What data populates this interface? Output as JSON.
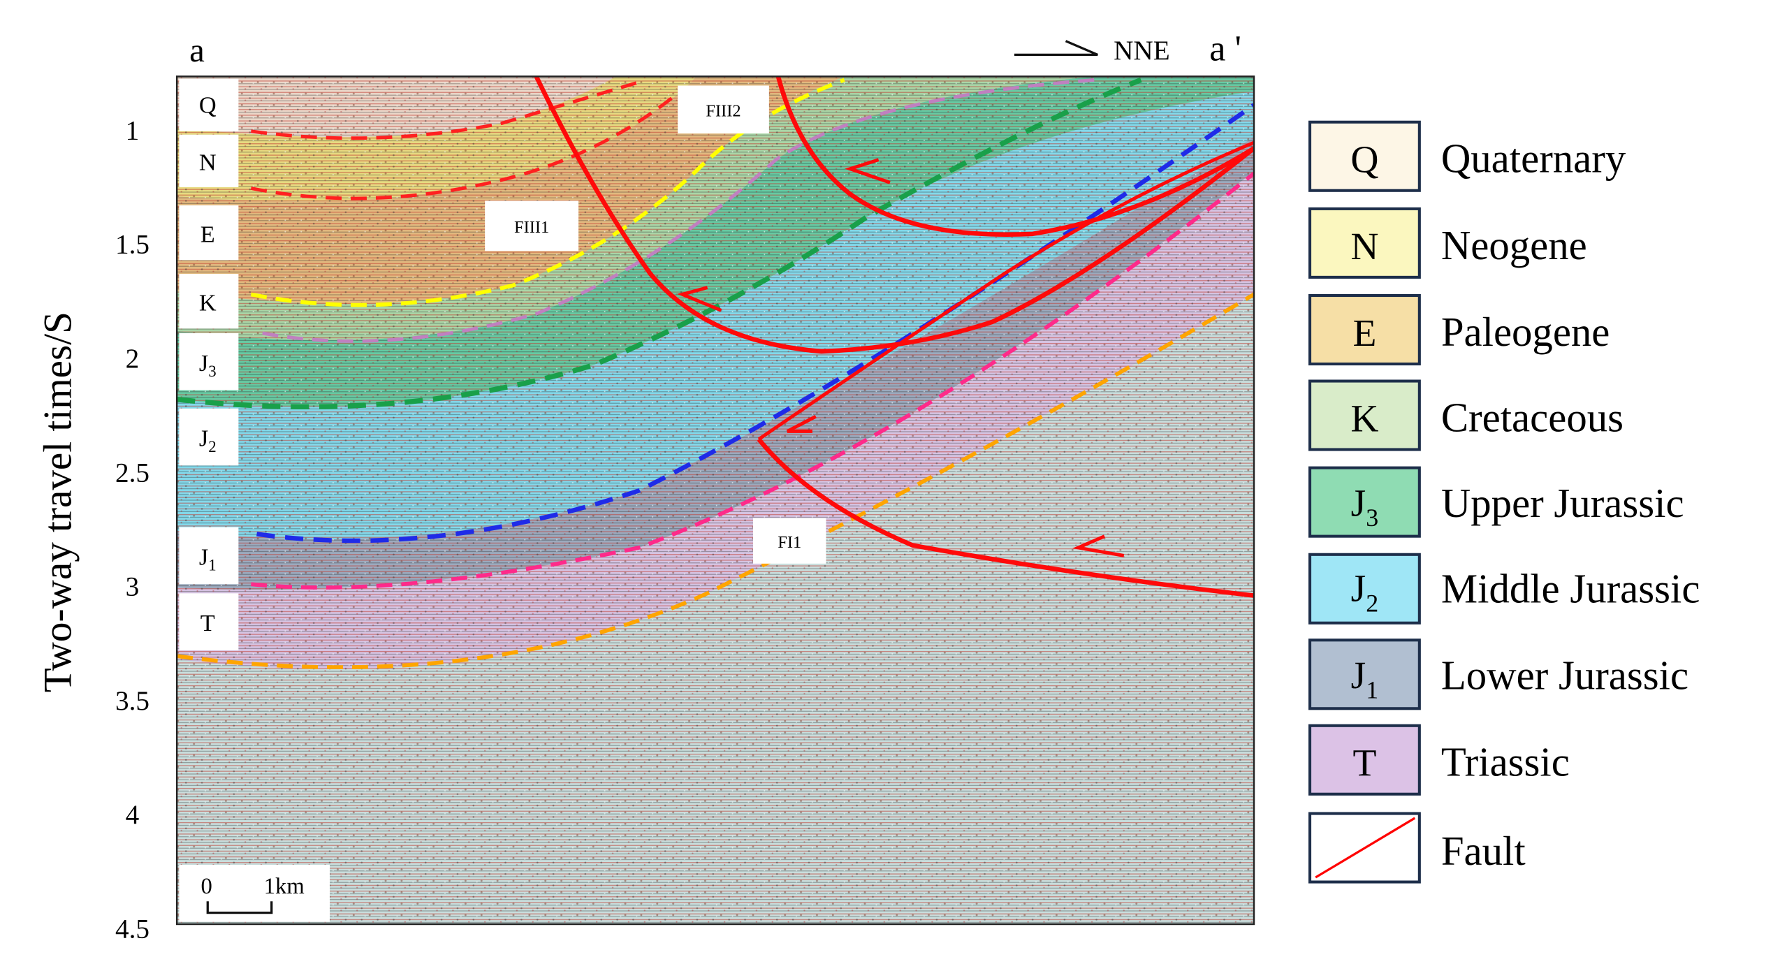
{
  "header": {
    "left_label": "a",
    "right_label": "a '",
    "direction": "NNE"
  },
  "axis": {
    "label": "Two-way travel times/S",
    "ticks": [
      "1",
      "1.5",
      "2",
      "2.5",
      "3",
      "3.5",
      "4",
      "4.5"
    ]
  },
  "strata_tags": [
    {
      "sym": "Q",
      "sub": ""
    },
    {
      "sym": "N",
      "sub": ""
    },
    {
      "sym": "E",
      "sub": ""
    },
    {
      "sym": "K",
      "sub": ""
    },
    {
      "sym": "J",
      "sub": "3"
    },
    {
      "sym": "J",
      "sub": "2"
    },
    {
      "sym": "J",
      "sub": "1"
    },
    {
      "sym": "T",
      "sub": ""
    }
  ],
  "fault_labels": [
    "FIII2",
    "FIII1",
    "FI1"
  ],
  "scale_bar": {
    "start": "0",
    "end": "1km"
  },
  "legend": [
    {
      "sym": "Q",
      "sub": "",
      "name": "Quaternary",
      "color": "#fdf6e6"
    },
    {
      "sym": "N",
      "sub": "",
      "name": "Neogene",
      "color": "#fbf7bf"
    },
    {
      "sym": "E",
      "sub": "",
      "name": "Paleogene",
      "color": "#f6dfa6"
    },
    {
      "sym": "K",
      "sub": "",
      "name": "Cretaceous",
      "color": "#d9ecc9"
    },
    {
      "sym": "J",
      "sub": "3",
      "name": "Upper Jurassic",
      "color": "#8fdcb3"
    },
    {
      "sym": "J",
      "sub": "2",
      "name": "Middle Jurassic",
      "color": "#9fe6f6"
    },
    {
      "sym": "J",
      "sub": "1",
      "name": "Lower Jurassic",
      "color": "#b1bfd1"
    },
    {
      "sym": "T",
      "sub": "",
      "name": "Triassic",
      "color": "#dcc2e6"
    },
    {
      "sym": "",
      "sub": "",
      "name": "Fault",
      "color": "#ffffff",
      "line_color": "#ff0000"
    }
  ]
}
